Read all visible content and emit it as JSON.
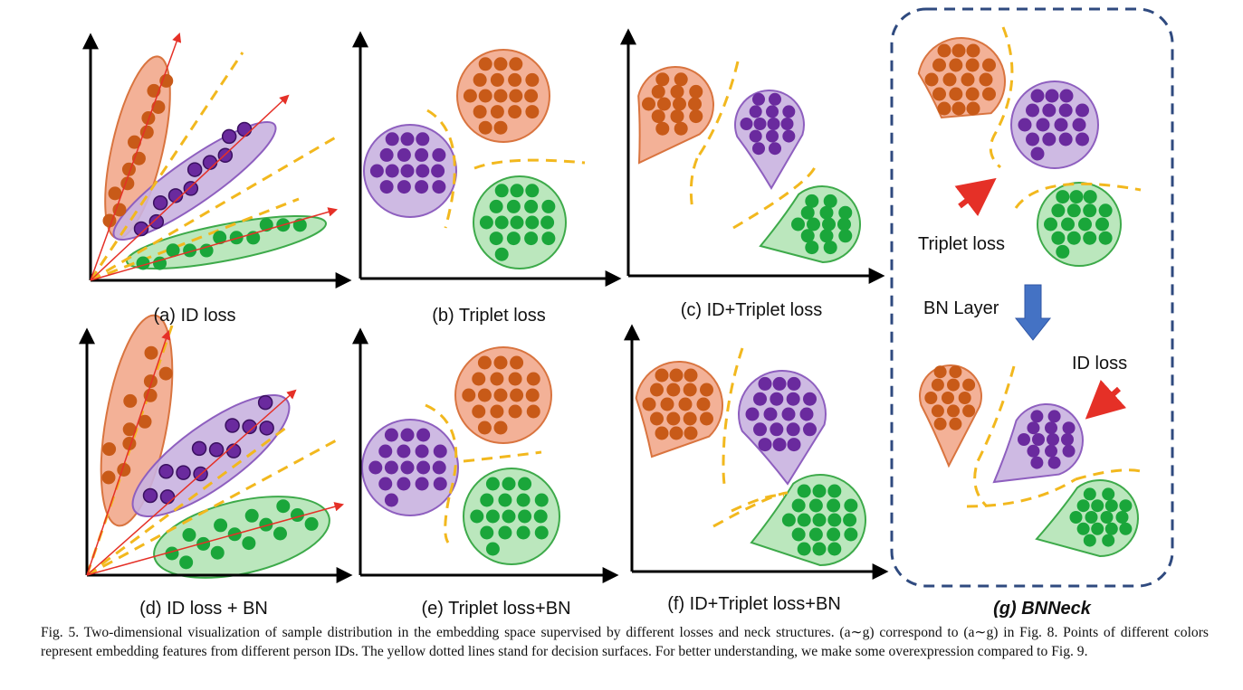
{
  "panels": {
    "a": "(a) ID loss",
    "b": "(b) Triplet loss",
    "c": "(c) ID+Triplet loss",
    "d": "(d) ID loss + BN",
    "e": "(e) Triplet loss+BN",
    "f": "(f) ID+Triplet loss+BN",
    "g": "(g) BNNeck"
  },
  "bnneck": {
    "triplet_loss": "Triplet loss",
    "bn_layer": "BN Layer",
    "id_loss": "ID loss"
  },
  "caption": "Fig. 5.  Two-dimensional visualization of sample distribution in the embedding space supervised by different losses and neck structures. (a∼g) correspond to (a∼g) in Fig. 8. Points of different colors represent embedding features from different person IDs. The yellow dotted lines stand for decision surfaces. For better understanding, we make some overexpression compared to Fig. 9.",
  "colors": {
    "orange_fill": "#f2a98c",
    "orange_stroke": "#d9743f",
    "orange_dot": "#c85a18",
    "purple_fill": "#c9b3e0",
    "purple_stroke": "#8e5fbf",
    "purple_dot": "#6a2a9e",
    "green_fill": "#b4e4b6",
    "green_stroke": "#3daa4a",
    "green_dot": "#1aa63a",
    "boundary": "#f2b81e",
    "arrow": "#e53027",
    "frame": "#2f4a7f",
    "bn_arrow": "#4472c4"
  }
}
